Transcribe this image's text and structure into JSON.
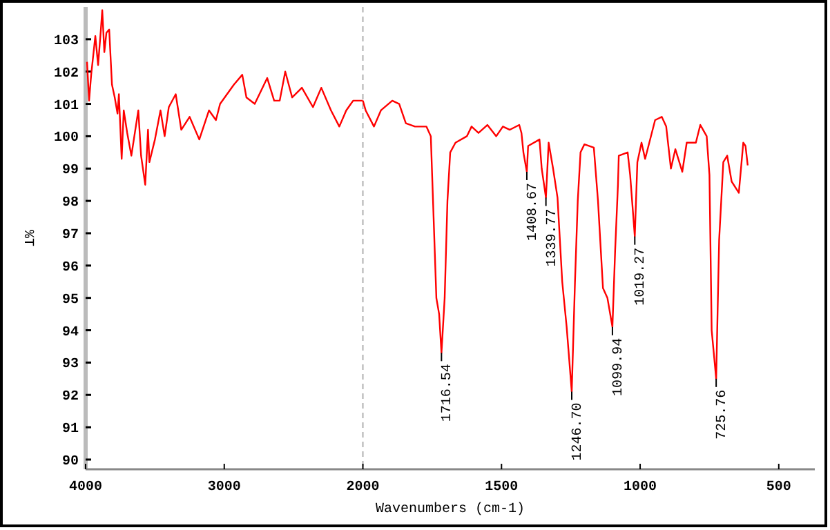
{
  "chart_data": [
    {
      "type": "line",
      "ylabel": "%T",
      "xlim": [
        4000,
        2000
      ],
      "xticks": [
        4000,
        3000
      ],
      "ylim": [
        89.7,
        104
      ],
      "yticks": [
        90,
        91,
        92,
        93,
        94,
        95,
        96,
        97,
        98,
        99,
        100,
        101,
        102,
        103
      ],
      "ref_lines": [
        {
          "axis": "x",
          "value": 2000,
          "color": "#b0b0b0",
          "line_style": "dashed"
        }
      ],
      "series": [
        {
          "color": "#ff0000",
          "x": [
            3990,
            3975,
            3960,
            3930,
            3910,
            3890,
            3880,
            3865,
            3850,
            3830,
            3810,
            3790,
            3770,
            3760,
            3740,
            3725,
            3700,
            3670,
            3620,
            3600,
            3570,
            3550,
            3540,
            3500,
            3460,
            3430,
            3400,
            3350,
            3310,
            3250,
            3180,
            3110,
            3060,
            3030,
            2930,
            2870,
            2840,
            2780,
            2690,
            2640,
            2600,
            2560,
            2510,
            2440,
            2360,
            2300,
            2230,
            2170,
            2120,
            2070,
            2000
          ],
          "values": [
            102.3,
            101.1,
            101.9,
            103.1,
            102.2,
            103.3,
            103.9,
            102.6,
            103.2,
            103.3,
            101.6,
            101.2,
            100.7,
            101.3,
            99.3,
            100.8,
            100.1,
            99.4,
            100.8,
            99.4,
            98.5,
            100.2,
            99.2,
            99.9,
            100.8,
            100,
            100.9,
            101.3,
            100.2,
            100.6,
            99.9,
            100.8,
            100.5,
            101,
            101.6,
            101.9,
            101.2,
            101,
            101.8,
            101.1,
            101.1,
            102,
            101.2,
            101.5,
            100.9,
            101.5,
            100.8,
            100.3,
            100.8,
            101.1,
            101.1
          ]
        }
      ]
    },
    {
      "type": "line",
      "xlabel": "Wavenumbers (cm-1)",
      "tick_labels": "x",
      "xlim": [
        2000,
        370
      ],
      "xticks": [
        2000,
        1500,
        1000,
        500
      ],
      "ylim": [
        89.7,
        104
      ],
      "series": [
        {
          "color": "#ff0000",
          "x": [
            2000,
            1990,
            1960,
            1935,
            1894,
            1869,
            1845,
            1812,
            1771,
            1755,
            1745,
            1735,
            1725,
            1716.54,
            1705,
            1695,
            1685,
            1666,
            1625,
            1608,
            1583,
            1551,
            1519,
            1495,
            1470,
            1436,
            1428,
            1421,
            1408.67,
            1404,
            1363,
            1355,
            1339.77,
            1330,
            1314,
            1298,
            1281,
            1265,
            1246.7,
            1235,
            1225,
            1215,
            1201,
            1167,
            1152,
            1134,
            1118,
            1099.94,
            1090,
            1080,
            1077,
            1045,
            1036,
            1019.27,
            1010,
            995,
            982,
            946,
            922,
            906,
            889,
            873,
            848,
            832,
            799,
            783,
            760,
            750,
            742,
            725.76,
            715,
            700,
            686,
            670,
            644,
            628,
            620,
            612
          ],
          "values": [
            101.1,
            100.8,
            100.3,
            100.8,
            101.1,
            101,
            100.4,
            100.3,
            100.3,
            100,
            97.5,
            95,
            94.5,
            93.3,
            95,
            98,
            99.5,
            99.8,
            100,
            100.3,
            100.1,
            100.35,
            100,
            100.3,
            100.2,
            100.35,
            100.1,
            99.5,
            98.9,
            99.7,
            99.9,
            99,
            98.1,
            99.8,
            99,
            98.1,
            95.5,
            94.1,
            92.1,
            95.5,
            98,
            99.5,
            99.75,
            99.65,
            98,
            95.3,
            95,
            94.1,
            96.5,
            98.5,
            99.4,
            99.5,
            98.8,
            96.9,
            99.2,
            99.8,
            99.3,
            100.5,
            100.6,
            100.3,
            99,
            99.6,
            98.9,
            99.8,
            99.8,
            100.35,
            100,
            98.8,
            94,
            92.5,
            96.8,
            99.2,
            99.4,
            98.6,
            98.25,
            99.8,
            99.7,
            99.1
          ]
        }
      ],
      "annotations": [
        {
          "text": "1716.54",
          "x": 1716.54,
          "y": 93.3
        },
        {
          "text": "1408.67",
          "x": 1408.67,
          "y": 98.9
        },
        {
          "text": "1339.77",
          "x": 1339.77,
          "y": 98.1
        },
        {
          "text": "1246.70",
          "x": 1246.7,
          "y": 92.1
        },
        {
          "text": "1099.94",
          "x": 1099.94,
          "y": 94.1
        },
        {
          "text": "1019.27",
          "x": 1019.27,
          "y": 96.9
        },
        {
          "text": "725.76",
          "x": 725.76,
          "y": 92.5
        }
      ]
    }
  ]
}
